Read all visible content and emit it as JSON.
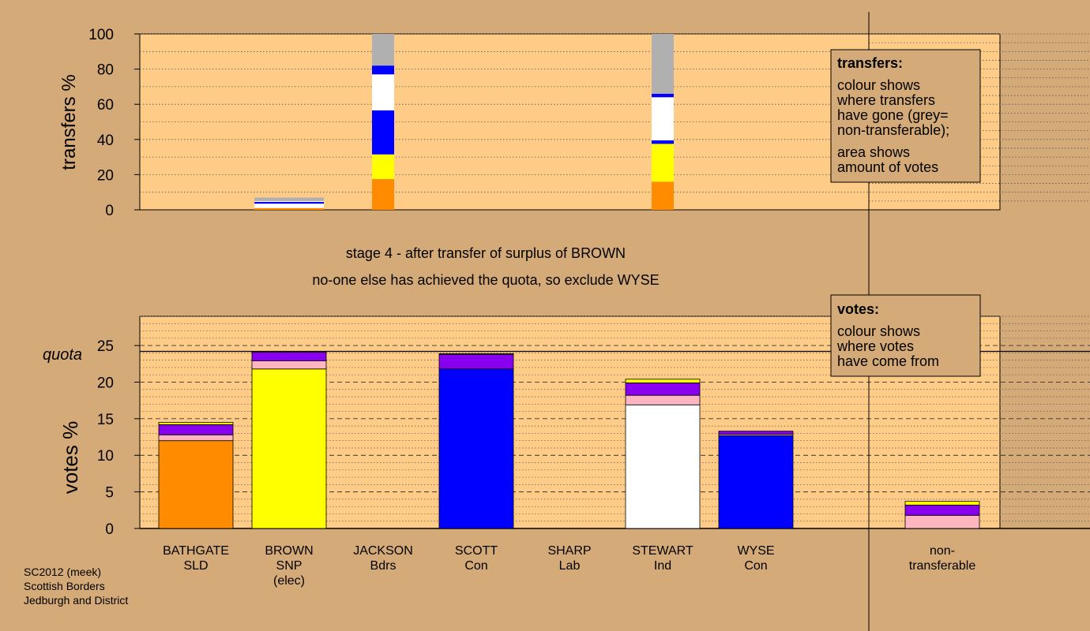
{
  "chart_data": [
    {
      "type": "bar",
      "stacked": true,
      "ylabel": "transfers %",
      "ylim": [
        0,
        100
      ],
      "yticks": [
        0,
        20,
        40,
        60,
        80,
        100
      ],
      "grid": "dotted",
      "categories": [
        "BATHGATE",
        "BROWN",
        "JACKSON",
        "SCOTT",
        "SHARP",
        "STEWART",
        "WYSE"
      ],
      "segments": [
        {
          "category": "BROWN",
          "stack": [
            {
              "color": "#ff8c00",
              "value": 1
            },
            {
              "color": "#ffffff",
              "value": 2.5
            },
            {
              "color": "#0000ff",
              "value": 1
            },
            {
              "color": "#ffffff",
              "value": 0.5
            },
            {
              "color": "#b0b0b0",
              "value": 2
            }
          ]
        },
        {
          "category": "JACKSON",
          "stack": [
            {
              "color": "#ff8c00",
              "value": 17.5
            },
            {
              "color": "#ffff00",
              "value": 14
            },
            {
              "color": "#0000ff",
              "value": 25
            },
            {
              "color": "#ffffff",
              "value": 20.5
            },
            {
              "color": "#0000ff",
              "value": 5
            },
            {
              "color": "#b0b0b0",
              "value": 18
            }
          ]
        },
        {
          "category": "STEWART",
          "stack": [
            {
              "color": "#ff8c00",
              "value": 16
            },
            {
              "color": "#ffff00",
              "value": 21.5
            },
            {
              "color": "#0000ff",
              "value": 2
            },
            {
              "color": "#ffffff",
              "value": 24.5
            },
            {
              "color": "#0000ff",
              "value": 2
            },
            {
              "color": "#b0b0b0",
              "value": 34
            }
          ]
        }
      ],
      "legend": {
        "placement": "top-right",
        "title": "transfers:",
        "lines": [
          "colour shows",
          "where transfers",
          "have gone (grey=",
          "non-transferable);"
        ],
        "lines2": [
          "area shows",
          "amount of votes"
        ]
      }
    },
    {
      "type": "bar",
      "stacked": true,
      "ylabel": "votes %",
      "ylim": [
        0,
        29
      ],
      "yticks": [
        0,
        5,
        10,
        15,
        20,
        25
      ],
      "quota": 24.2,
      "quota_label": "quota",
      "grid": "dashed",
      "categories": [
        {
          "name": "BATHGATE",
          "party": "SLD",
          "note": ""
        },
        {
          "name": "BROWN",
          "party": "SNP",
          "note": "(elec)"
        },
        {
          "name": "JACKSON",
          "party": "Bdrs",
          "note": ""
        },
        {
          "name": "SCOTT",
          "party": "Con",
          "note": ""
        },
        {
          "name": "SHARP",
          "party": "Lab",
          "note": ""
        },
        {
          "name": "STEWART",
          "party": "Ind",
          "note": ""
        },
        {
          "name": "WYSE",
          "party": "Con",
          "note": ""
        },
        {
          "name": "",
          "party": "",
          "note": ""
        },
        {
          "name": "non-",
          "party": "transferable",
          "note": ""
        }
      ],
      "stacks": [
        [
          {
            "color": "#ff8c00",
            "value": 12
          },
          {
            "color": "#ffb6c1",
            "value": 0.8
          },
          {
            "color": "#8800ee",
            "value": 1.4
          },
          {
            "color": "#ffff00",
            "value": 0.3
          }
        ],
        [
          {
            "color": "#ffff00",
            "value": 21.8
          },
          {
            "color": "#ffb6c1",
            "value": 1.1
          },
          {
            "color": "#8800ee",
            "value": 1.2
          }
        ],
        [],
        [
          {
            "color": "#0000ff",
            "value": 21.8
          },
          {
            "color": "#8800ee",
            "value": 2
          },
          {
            "color": "#ffff00",
            "value": 0.1
          }
        ],
        [],
        [
          {
            "color": "#ffffff",
            "value": 16.9
          },
          {
            "color": "#ffb6c1",
            "value": 1.3
          },
          {
            "color": "#8800ee",
            "value": 1.7
          },
          {
            "color": "#ffff00",
            "value": 0.5
          }
        ],
        [
          {
            "color": "#0000ff",
            "value": 12.7
          },
          {
            "color": "#ffb6c1",
            "value": 0.2
          },
          {
            "color": "#8800ee",
            "value": 0.4
          }
        ],
        [],
        [
          {
            "color": "#ffb6c1",
            "value": 1.8
          },
          {
            "color": "#8800ee",
            "value": 1.4
          },
          {
            "color": "#ffff00",
            "value": 0.5
          }
        ]
      ],
      "legend": {
        "placement": "top-right",
        "title": "votes:",
        "lines": [
          "colour shows",
          "where votes",
          "have come from"
        ]
      }
    }
  ],
  "annotations": {
    "stage_line": "stage 4 - after transfer of surplus of BROWN",
    "exclude_line": "no-one else has achieved the quota, so exclude WYSE"
  },
  "footer": [
    "SC2012 (meek)",
    "Scottish Borders",
    "Jedburgh and District"
  ],
  "colors": {
    "background": "#d4aa78",
    "plot": "#ffcc88"
  }
}
